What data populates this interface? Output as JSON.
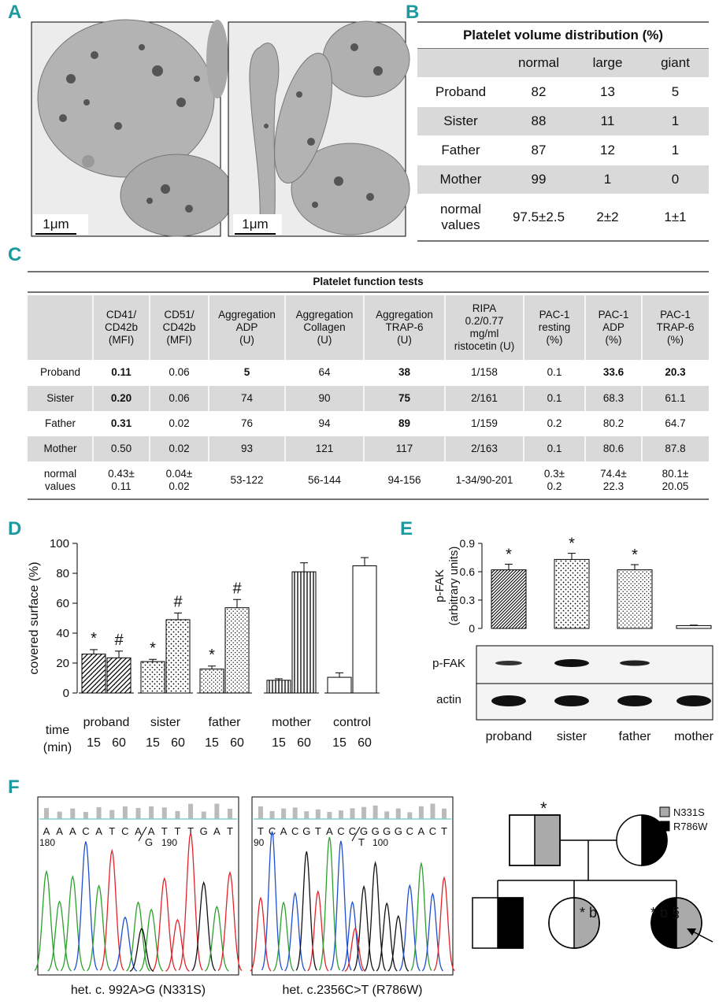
{
  "panels": [
    "A",
    "B",
    "C",
    "D",
    "E",
    "F"
  ],
  "panel_a": {
    "scale_bars": [
      "1μm",
      "1μm"
    ]
  },
  "panel_b": {
    "title": "Platelet volume distribution (%)",
    "columns": [
      "normal",
      "large",
      "giant"
    ],
    "rows": [
      {
        "label": "Proband",
        "cells": [
          "82",
          "13",
          "5"
        ]
      },
      {
        "label": "Sister",
        "cells": [
          "88",
          "11",
          "1"
        ]
      },
      {
        "label": "Father",
        "cells": [
          "87",
          "12",
          "1"
        ]
      },
      {
        "label": "Mother",
        "cells": [
          "99",
          "1",
          "0"
        ]
      },
      {
        "label": "normal\nvalues",
        "cells": [
          "97.5±2.5",
          "2±2",
          "1±1"
        ]
      }
    ]
  },
  "panel_c": {
    "title": "Platelet function tests",
    "columns": [
      "CD41/\nCD42b\n(MFI)",
      "CD51/\nCD42b\n(MFI)",
      "Aggregation\nADP\n(U)",
      "Aggregation\nCollagen\n(U)",
      "Aggregation\nTRAP-6\n(U)",
      "RIPA\n0.2/0.77\nmg/ml\nristocetin (U)",
      "PAC-1\nresting\n(%)",
      "PAC-1\nADP\n(%)",
      "PAC-1\nTRAP-6\n(%)"
    ],
    "rows": [
      {
        "label": "Proband",
        "cells": [
          "0.11",
          "0.06",
          "5",
          "64",
          "38",
          "1/158",
          "0.1",
          "33.6",
          "20.3"
        ],
        "bold": [
          0,
          2,
          4,
          7,
          8
        ]
      },
      {
        "label": "Sister",
        "cells": [
          "0.20",
          "0.06",
          "74",
          "90",
          "75",
          "2/161",
          "0.1",
          "68.3",
          "61.1"
        ],
        "bold": [
          0,
          4
        ]
      },
      {
        "label": "Father",
        "cells": [
          "0.31",
          "0.02",
          "76",
          "94",
          "89",
          "1/159",
          "0.2",
          "80.2",
          "64.7"
        ],
        "bold": [
          0,
          4
        ]
      },
      {
        "label": "Mother",
        "cells": [
          "0.50",
          "0.02",
          "93",
          "121",
          "117",
          "2/163",
          "0.1",
          "80.6",
          "87.8"
        ]
      },
      {
        "label": "normal\nvalues",
        "cells": [
          "0.43±\n0.11",
          "0.04±\n0.02",
          "53-122",
          "56-144",
          "94-156",
          "1-34/90-201",
          "0.3±\n0.2",
          "74.4±\n22.3",
          "80.1±\n20.05"
        ]
      }
    ]
  },
  "chart_data": [
    {
      "type": "bar",
      "y_label": "covered surface (%)",
      "x_label": "time\n(min)",
      "categories": [
        "proband",
        "sister",
        "father",
        "mother",
        "control"
      ],
      "patterns": [
        "hatch",
        "dots",
        "dots-fine",
        "vlines",
        "none"
      ],
      "series": [
        {
          "name": "15",
          "color": "#ffffff",
          "values": [
            26,
            21,
            16,
            8.5,
            10.5
          ],
          "errors": [
            3,
            1.5,
            2,
            1,
            3
          ],
          "annotations": [
            "*",
            "*",
            "*",
            null,
            null
          ]
        },
        {
          "name": "60",
          "color": "#ffffff",
          "values": [
            23.5,
            49,
            57,
            81,
            85
          ],
          "errors": [
            4.5,
            4.5,
            5.5,
            6,
            5.5
          ],
          "annotations": [
            "#",
            "#",
            "#",
            null,
            null
          ]
        }
      ],
      "ylim": [
        0,
        100
      ],
      "yticks": [
        0,
        20,
        40,
        60,
        80,
        100
      ]
    },
    {
      "type": "bar",
      "y_label": "p-FAK\n(arbitrary units)",
      "categories": [
        "proband",
        "sister",
        "father",
        "mother"
      ],
      "patterns": [
        "hatch-dense",
        "dots",
        "dots-fine",
        "none"
      ],
      "color": "#ffffff",
      "values": [
        0.62,
        0.73,
        0.62,
        0.03
      ],
      "errors": [
        0.06,
        0.065,
        0.055,
        0.005
      ],
      "annotations": [
        "*",
        "*",
        "*",
        null
      ],
      "ylim": [
        0,
        0.9
      ],
      "yticks": [
        0,
        0.3,
        0.6,
        0.9
      ]
    }
  ],
  "panel_e_blot": {
    "labels": [
      "p-FAK",
      "actin"
    ]
  },
  "panel_f": {
    "chromatograms": [
      {
        "sequence": [
          "A",
          "A",
          "A",
          "C",
          "A",
          "T",
          "C",
          "A",
          "A",
          "T",
          "T",
          "T",
          "G",
          "A",
          "T"
        ],
        "positions": [
          "180",
          "190"
        ],
        "substitution": "G",
        "caption": "het. c. 992A>G (N331S)"
      },
      {
        "sequence": [
          "T",
          "C",
          "A",
          "C",
          "G",
          "T",
          "A",
          "C",
          "C",
          "G",
          "G",
          "G",
          "G",
          "C",
          "A",
          "C",
          "T"
        ],
        "positions": [
          "90",
          "100"
        ],
        "substitution": "T",
        "caption": "het. c.2356C>T (R786W)"
      }
    ],
    "pedigree": {
      "legend": [
        "N331S",
        "R786W"
      ],
      "annotations": [
        "*",
        "* b",
        "* b §"
      ]
    }
  }
}
